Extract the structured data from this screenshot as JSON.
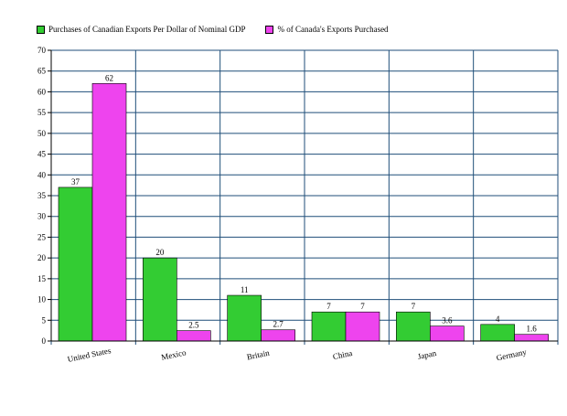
{
  "chart_data": {
    "type": "bar",
    "title": "",
    "xlabel": "",
    "ylabel": "",
    "ylim": [
      0,
      70
    ],
    "yticks": [
      0,
      5,
      10,
      15,
      20,
      25,
      30,
      35,
      40,
      45,
      50,
      55,
      60,
      65,
      70
    ],
    "grid": true,
    "legend_position": "top-left",
    "categories": [
      "United States",
      "Mexico",
      "Britain",
      "China",
      "Japan",
      "Germany"
    ],
    "series": [
      {
        "name": "Purchases of Canadian Exports Per Dollar of Nominal GDP",
        "color": "#33cc33",
        "values": [
          37,
          20,
          11,
          7,
          7,
          4
        ],
        "labels": [
          "37",
          "20",
          "11",
          "7",
          "7",
          "4"
        ]
      },
      {
        "name": "% of Canada's Exports Purchased",
        "color": "#ee44ee",
        "values": [
          62,
          2.5,
          2.7,
          7,
          3.6,
          1.6
        ],
        "labels": [
          "62",
          "2.5",
          "2.7",
          "7",
          "3.6",
          "1.6"
        ]
      }
    ]
  }
}
